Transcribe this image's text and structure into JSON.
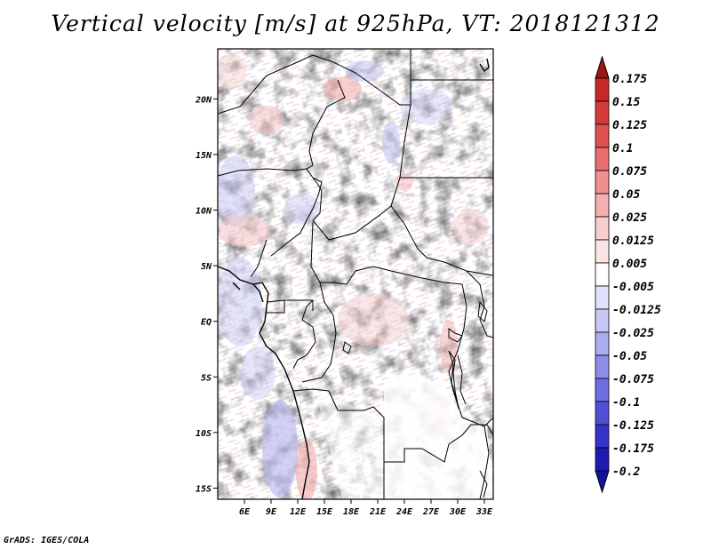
{
  "title": "Vertical velocity [m/s] at 925hPa, VT: 2018121312",
  "credit": "GrADS: IGES/COLA",
  "map": {
    "lon_range": [
      3,
      34
    ],
    "lat_range": [
      -16,
      24.5
    ],
    "x_ticks": [
      {
        "value": 6,
        "label": "6E"
      },
      {
        "value": 9,
        "label": "9E"
      },
      {
        "value": 12,
        "label": "12E"
      },
      {
        "value": 15,
        "label": "15E"
      },
      {
        "value": 18,
        "label": "18E"
      },
      {
        "value": 21,
        "label": "21E"
      },
      {
        "value": 24,
        "label": "24E"
      },
      {
        "value": 27,
        "label": "27E"
      },
      {
        "value": 30,
        "label": "30E"
      },
      {
        "value": 33,
        "label": "33E"
      }
    ],
    "y_ticks": [
      {
        "value": 20,
        "label": "20N"
      },
      {
        "value": 15,
        "label": "15N"
      },
      {
        "value": 10,
        "label": "10N"
      },
      {
        "value": 5,
        "label": "5N"
      },
      {
        "value": 0,
        "label": "EQ"
      },
      {
        "value": -5,
        "label": "5S"
      },
      {
        "value": -10,
        "label": "10S"
      },
      {
        "value": -15,
        "label": "15S"
      }
    ]
  },
  "colorbar": {
    "levels": [
      {
        "label": "0.175",
        "color": "#b01a1a"
      },
      {
        "label": "0.15",
        "color": "#c62828"
      },
      {
        "label": "0.125",
        "color": "#d43c3c"
      },
      {
        "label": "0.1",
        "color": "#e05252"
      },
      {
        "label": "0.075",
        "color": "#e87070"
      },
      {
        "label": "0.05",
        "color": "#ee9090"
      },
      {
        "label": "0.025",
        "color": "#f4b0b0"
      },
      {
        "label": "0.0125",
        "color": "#f8cece"
      },
      {
        "label": "0.005",
        "color": "#fce4e4"
      },
      {
        "label": "-0.005",
        "color": "#ffffff"
      },
      {
        "label": "-0.0125",
        "color": "#e2e2fa"
      },
      {
        "label": "-0.025",
        "color": "#c8c8f6"
      },
      {
        "label": "-0.05",
        "color": "#acacf0"
      },
      {
        "label": "-0.075",
        "color": "#8e8ee8"
      },
      {
        "label": "-0.1",
        "color": "#6e6ee0"
      },
      {
        "label": "-0.125",
        "color": "#5050d6"
      },
      {
        "label": "-0.175",
        "color": "#3434c8"
      },
      {
        "label": "-0.2",
        "color": "#1c1cb0"
      }
    ],
    "top_color": "#a01414",
    "bottom_color": "#14149a"
  }
}
